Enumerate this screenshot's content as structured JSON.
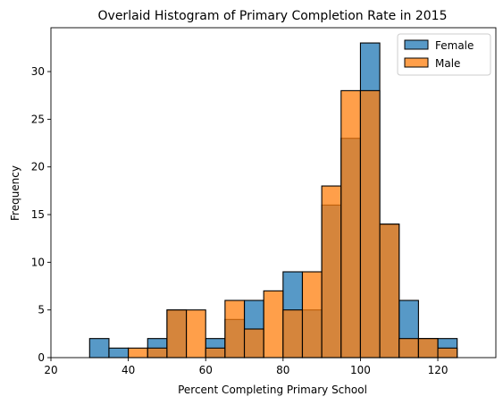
{
  "chart_data": {
    "type": "bar",
    "subtype": "overlaid-histogram",
    "title": "Overlaid Histogram of Primary Completion Rate in 2015",
    "xlabel": "Percent Completing Primary School",
    "ylabel": "Frequency",
    "xlim": [
      20,
      135
    ],
    "ylim": [
      0,
      34.6
    ],
    "xticks": [
      20,
      40,
      60,
      80,
      100,
      120
    ],
    "yticks": [
      0,
      5,
      10,
      15,
      20,
      25,
      30
    ],
    "grid": false,
    "legend_position": "top-right",
    "bin_edges": [
      25,
      30,
      35,
      40,
      45,
      50,
      55,
      60,
      65,
      70,
      75,
      80,
      85,
      90,
      95,
      100,
      105,
      110,
      115,
      120,
      125,
      130
    ],
    "series": [
      {
        "name": "Female",
        "color": "#1f77b4",
        "values": [
          0,
          2,
          1,
          0,
          2,
          5,
          0,
          2,
          4,
          6,
          0,
          9,
          5,
          16,
          23,
          33,
          14,
          6,
          2,
          2,
          0
        ]
      },
      {
        "name": "Male",
        "color": "#ff7f0e",
        "values": [
          0,
          0,
          0,
          1,
          1,
          5,
          5,
          1,
          6,
          3,
          7,
          5,
          9,
          18,
          28,
          28,
          14,
          2,
          2,
          1,
          0
        ]
      }
    ]
  }
}
